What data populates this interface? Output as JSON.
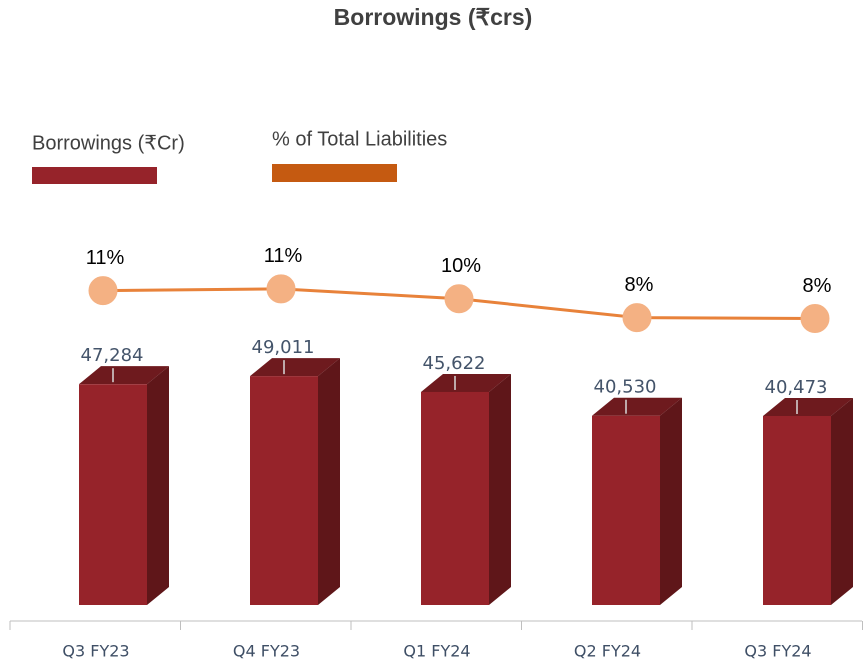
{
  "chart_data": {
    "type": "bar",
    "title": "Borrowings (₹crs)",
    "categories": [
      "Q3 FY23",
      "Q4 FY23",
      "Q1 FY24",
      "Q2 FY24",
      "Q3 FY24"
    ],
    "series": [
      {
        "name": "Borrowings (₹Cr)",
        "color": "#96232a",
        "values": [
          47284,
          49011,
          45622,
          40530,
          40473
        ],
        "value_labels": [
          "47,284",
          "49,011",
          "45,622",
          "40,530",
          "40,473"
        ]
      },
      {
        "name": "% of Total Liabilities",
        "type": "line",
        "axis": "y2",
        "color": "#e8823a",
        "legend_color": "#c55a11",
        "marker_color": "#f4b183",
        "values": [
          11.0,
          11.2,
          10.1,
          8.0,
          7.9
        ],
        "value_labels": [
          "11%",
          "11%",
          "10%",
          "8%",
          "8%"
        ]
      }
    ],
    "ylim": [
      0,
      100000
    ],
    "y2lim": [
      -24,
      28
    ],
    "legend": "top-left"
  }
}
